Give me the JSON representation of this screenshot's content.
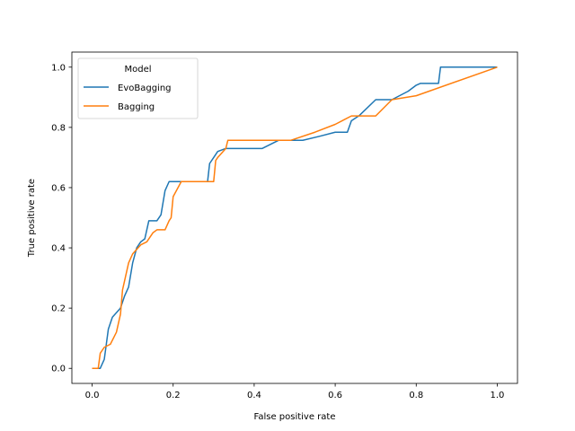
{
  "chart_data": {
    "type": "line",
    "title": "",
    "xlabel": "False positive rate",
    "ylabel": "True positive rate",
    "xlim": [
      -0.05,
      1.05
    ],
    "ylim": [
      -0.05,
      1.05
    ],
    "xticks": [
      "0.0",
      "0.2",
      "0.4",
      "0.6",
      "0.8",
      "1.0"
    ],
    "yticks": [
      "0.0",
      "0.2",
      "0.4",
      "0.6",
      "0.8",
      "1.0"
    ],
    "grid": false,
    "legend": {
      "title": "Model",
      "placement": "top-left"
    },
    "series": [
      {
        "name": "EvoBagging",
        "color": "#1f77b4",
        "x": [
          0.0,
          0.02,
          0.03,
          0.04,
          0.05,
          0.07,
          0.08,
          0.09,
          0.1,
          0.11,
          0.12,
          0.13,
          0.14,
          0.145,
          0.16,
          0.17,
          0.18,
          0.19,
          0.2,
          0.22,
          0.24,
          0.26,
          0.285,
          0.29,
          0.3,
          0.31,
          0.33,
          0.42,
          0.46,
          0.52,
          0.56,
          0.6,
          0.63,
          0.64,
          0.66,
          0.7,
          0.74,
          0.78,
          0.8,
          0.81,
          0.855,
          0.86,
          0.9,
          1.0
        ],
        "y": [
          0.0,
          0.0,
          0.03,
          0.13,
          0.17,
          0.2,
          0.24,
          0.27,
          0.35,
          0.4,
          0.42,
          0.43,
          0.49,
          0.49,
          0.49,
          0.51,
          0.59,
          0.62,
          0.62,
          0.62,
          0.62,
          0.62,
          0.62,
          0.68,
          0.7,
          0.72,
          0.73,
          0.73,
          0.757,
          0.757,
          0.77,
          0.784,
          0.784,
          0.822,
          0.84,
          0.892,
          0.892,
          0.92,
          0.94,
          0.946,
          0.946,
          1.0,
          1.0,
          1.0
        ]
      },
      {
        "name": "Bagging",
        "color": "#ff7f0e",
        "x": [
          0.0,
          0.015,
          0.02,
          0.03,
          0.045,
          0.06,
          0.07,
          0.075,
          0.08,
          0.09,
          0.1,
          0.12,
          0.135,
          0.15,
          0.16,
          0.18,
          0.19,
          0.195,
          0.2,
          0.22,
          0.26,
          0.3,
          0.305,
          0.31,
          0.33,
          0.335,
          0.4,
          0.45,
          0.49,
          0.55,
          0.6,
          0.64,
          0.7,
          0.74,
          0.8,
          1.0
        ],
        "y": [
          0.0,
          0.0,
          0.05,
          0.07,
          0.08,
          0.12,
          0.18,
          0.26,
          0.29,
          0.35,
          0.38,
          0.41,
          0.42,
          0.45,
          0.46,
          0.46,
          0.49,
          0.5,
          0.57,
          0.62,
          0.62,
          0.62,
          0.69,
          0.7,
          0.73,
          0.757,
          0.757,
          0.757,
          0.757,
          0.784,
          0.81,
          0.838,
          0.838,
          0.892,
          0.905,
          1.0
        ]
      }
    ]
  }
}
